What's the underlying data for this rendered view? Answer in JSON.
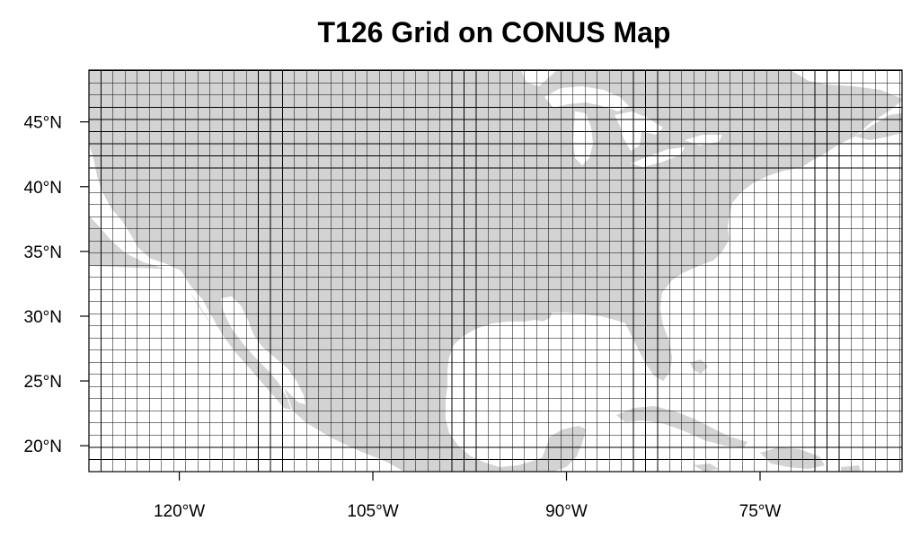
{
  "map": {
    "title": "T126 Grid on CONUS Map",
    "projection": "cylindrical-equidistant",
    "extent": {
      "lon_min": -127,
      "lon_max": -64,
      "lat_min": 18,
      "lat_max": 49
    },
    "grid": {
      "name": "T126",
      "spacing_deg": 0.9375
    },
    "x_ticks": [
      {
        "lon": -120,
        "label": "120°W"
      },
      {
        "lon": -105,
        "label": "105°W"
      },
      {
        "lon": -90,
        "label": "90°W"
      },
      {
        "lon": -75,
        "label": "75°W"
      }
    ],
    "y_ticks": [
      {
        "lat": 20,
        "label": "20°N"
      },
      {
        "lat": 25,
        "label": "25°N"
      },
      {
        "lat": 30,
        "label": "30°N"
      },
      {
        "lat": 35,
        "label": "35°N"
      },
      {
        "lat": 40,
        "label": "40°N"
      },
      {
        "lat": 45,
        "label": "45°N"
      }
    ],
    "colors": {
      "land": "#d3d3d3",
      "ocean": "#ffffff",
      "grid": "#000000",
      "frame": "#000000"
    }
  }
}
